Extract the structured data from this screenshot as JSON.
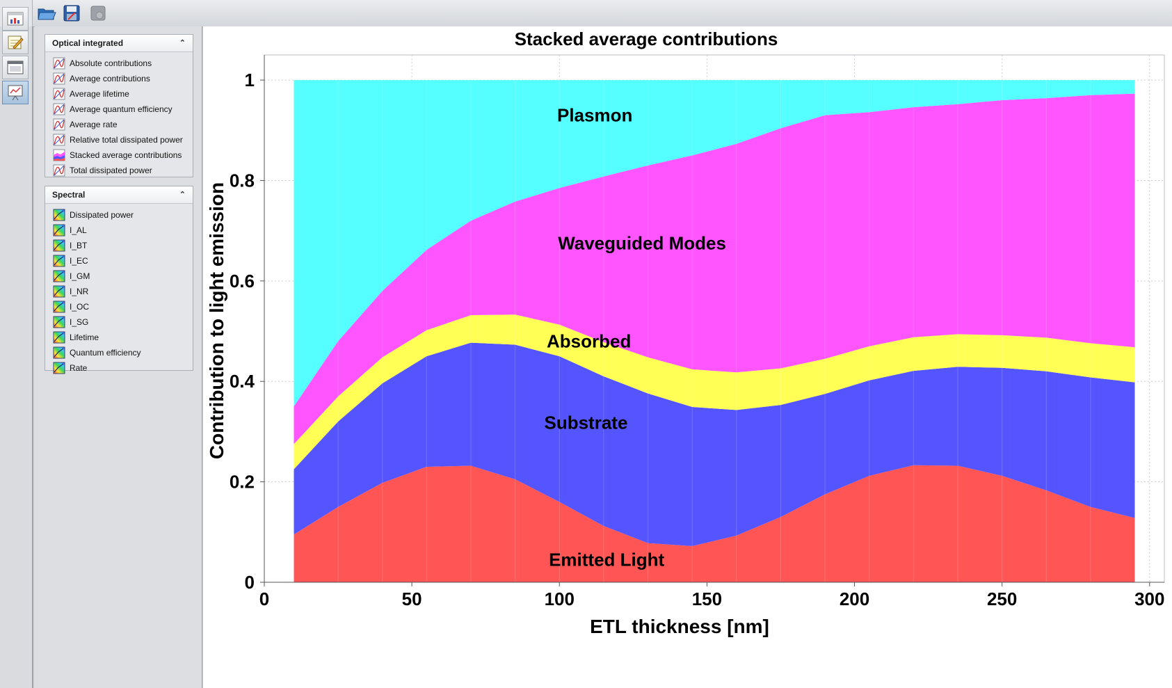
{
  "toolbar": {
    "buttons": [
      {
        "name": "open-icon"
      },
      {
        "name": "save-icon"
      },
      {
        "name": "export-icon"
      }
    ]
  },
  "view_bar": {
    "buttons": [
      {
        "name": "view-overview-icon"
      },
      {
        "name": "view-edit-icon"
      },
      {
        "name": "view-window-icon"
      },
      {
        "name": "view-results-icon",
        "active": true
      }
    ]
  },
  "panels": {
    "optical": {
      "title": "Optical integrated",
      "items": [
        {
          "label": "Absolute contributions",
          "icon": "curve-icon"
        },
        {
          "label": "Average contributions",
          "icon": "curve-icon"
        },
        {
          "label": "Average lifetime",
          "icon": "curve-icon"
        },
        {
          "label": "Average quantum efficiency",
          "icon": "curve-icon"
        },
        {
          "label": "Average rate",
          "icon": "curve-icon"
        },
        {
          "label": "Relative total dissipated power",
          "icon": "curve-icon"
        },
        {
          "label": "Stacked average contributions",
          "icon": "stacked-area-icon"
        },
        {
          "label": "Total dissipated power",
          "icon": "curve-icon"
        }
      ]
    },
    "spectral": {
      "title": "Spectral",
      "items": [
        {
          "label": "Dissipated power",
          "icon": "spectrum-icon"
        },
        {
          "label": "I_AL",
          "icon": "spectrum-icon"
        },
        {
          "label": "I_BT",
          "icon": "spectrum-icon"
        },
        {
          "label": "I_EC",
          "icon": "spectrum-icon"
        },
        {
          "label": "I_GM",
          "icon": "spectrum-icon"
        },
        {
          "label": "I_NR",
          "icon": "spectrum-icon"
        },
        {
          "label": "I_OC",
          "icon": "spectrum-icon"
        },
        {
          "label": "I_SG",
          "icon": "spectrum-icon"
        },
        {
          "label": "Lifetime",
          "icon": "spectrum-icon"
        },
        {
          "label": "Quantum efficiency",
          "icon": "spectrum-icon"
        },
        {
          "label": "Rate",
          "icon": "spectrum-icon"
        }
      ]
    }
  },
  "chart_data": {
    "type": "area",
    "stacked": true,
    "title": "Stacked average contributions",
    "xlabel": "ETL thickness [nm]",
    "ylabel": "Contribution to light emission",
    "xlim": [
      0,
      305
    ],
    "ylim": [
      0,
      1.05
    ],
    "xticks": [
      0,
      50,
      100,
      150,
      200,
      250,
      300
    ],
    "yticks": [
      0,
      0.2,
      0.4,
      0.6,
      0.8,
      1
    ],
    "ytick_labels": [
      "0",
      "0.2",
      "0.4",
      "0.6",
      "0.8",
      "1"
    ],
    "grid": true,
    "x": [
      10,
      25,
      40,
      55,
      70,
      85,
      100,
      115,
      130,
      145,
      160,
      175,
      190,
      205,
      220,
      235,
      250,
      265,
      280,
      295
    ],
    "series": [
      {
        "name": "Emitted Light",
        "color": "#ff5555",
        "values": [
          0.095,
          0.15,
          0.198,
          0.23,
          0.232,
          0.205,
          0.16,
          0.112,
          0.078,
          0.072,
          0.093,
          0.13,
          0.175,
          0.212,
          0.233,
          0.232,
          0.212,
          0.183,
          0.15,
          0.128
        ]
      },
      {
        "name": "Substrate",
        "color": "#5555ff",
        "values": [
          0.13,
          0.17,
          0.198,
          0.22,
          0.245,
          0.268,
          0.29,
          0.298,
          0.298,
          0.277,
          0.25,
          0.223,
          0.2,
          0.19,
          0.188,
          0.197,
          0.215,
          0.237,
          0.258,
          0.27
        ]
      },
      {
        "name": "Absorbed",
        "color": "#ffff55",
        "values": [
          0.05,
          0.05,
          0.052,
          0.052,
          0.055,
          0.06,
          0.063,
          0.068,
          0.072,
          0.075,
          0.075,
          0.073,
          0.07,
          0.068,
          0.067,
          0.065,
          0.065,
          0.067,
          0.068,
          0.07
        ]
      },
      {
        "name": "Waveguided Modes",
        "color": "#ff55ff",
        "values": [
          0.075,
          0.11,
          0.132,
          0.16,
          0.188,
          0.225,
          0.272,
          0.33,
          0.382,
          0.426,
          0.455,
          0.478,
          0.485,
          0.466,
          0.458,
          0.458,
          0.468,
          0.477,
          0.494,
          0.505
        ]
      },
      {
        "name": "Plasmon",
        "color": "#55ffff",
        "values": [
          0.65,
          0.52,
          0.42,
          0.338,
          0.28,
          0.242,
          0.215,
          0.192,
          0.17,
          0.15,
          0.127,
          0.096,
          0.07,
          0.064,
          0.054,
          0.048,
          0.04,
          0.036,
          0.03,
          0.027
        ]
      }
    ],
    "labels": [
      {
        "text": "Plasmon",
        "x": 112,
        "y": 0.93
      },
      {
        "text": "Waveguided Modes",
        "x": 128,
        "y": 0.675
      },
      {
        "text": "Absorbed",
        "x": 110,
        "y": 0.48
      },
      {
        "text": "Substrate",
        "x": 109,
        "y": 0.318
      },
      {
        "text": "Emitted Light",
        "x": 116,
        "y": 0.045
      }
    ]
  }
}
